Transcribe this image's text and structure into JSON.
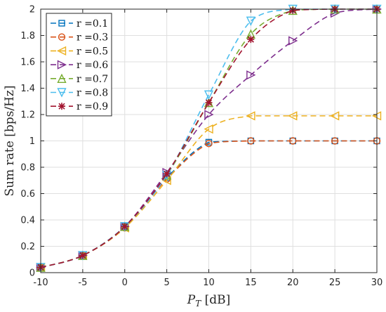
{
  "chart_data": {
    "type": "line",
    "xlabel_main": "P",
    "xlabel_sub": "T",
    "xlabel_unit": " [dB]",
    "ylabel": "Sum rate [bps/Hz]",
    "xlim": [
      -10,
      30
    ],
    "ylim": [
      0,
      2
    ],
    "xticks": [
      -10,
      -5,
      0,
      5,
      10,
      15,
      20,
      25,
      30
    ],
    "yticks": [
      0,
      0.2,
      0.4,
      0.6,
      0.8,
      1,
      1.2,
      1.4,
      1.6,
      1.8,
      2
    ],
    "grid": true,
    "legend_position": "top-left",
    "x": [
      -10,
      -5,
      0,
      5,
      10,
      15,
      20,
      25,
      30
    ],
    "series": [
      {
        "name": "r =0.1",
        "color": "#0072BD",
        "marker": "square",
        "values": [
          0.04,
          0.13,
          0.35,
          0.72,
          0.99,
          1.0,
          1.0,
          1.0,
          1.0
        ]
      },
      {
        "name": "r =0.3",
        "color": "#D95319",
        "marker": "circle",
        "values": [
          0.04,
          0.13,
          0.34,
          0.71,
          0.98,
          1.0,
          1.0,
          1.0,
          1.0
        ]
      },
      {
        "name": "r =0.5",
        "color": "#EDB120",
        "marker": "triangle-left",
        "values": [
          0.04,
          0.13,
          0.34,
          0.7,
          1.09,
          1.19,
          1.19,
          1.19,
          1.19
        ]
      },
      {
        "name": "r =0.6",
        "color": "#7E2F8E",
        "marker": "triangle-right",
        "values": [
          0.04,
          0.13,
          0.35,
          0.76,
          1.2,
          1.5,
          1.76,
          1.97,
          2.0
        ]
      },
      {
        "name": "r =0.7",
        "color": "#77AC30",
        "marker": "triangle-up",
        "values": [
          0.04,
          0.13,
          0.35,
          0.74,
          1.29,
          1.81,
          1.99,
          2.0,
          2.0
        ]
      },
      {
        "name": "r =0.8",
        "color": "#4DBEEE",
        "marker": "triangle-down",
        "values": [
          0.04,
          0.13,
          0.35,
          0.74,
          1.35,
          1.91,
          2.0,
          2.0,
          2.0
        ]
      },
      {
        "name": "r =0.9",
        "color": "#A2142F",
        "marker": "x-star",
        "values": [
          0.04,
          0.13,
          0.35,
          0.75,
          1.29,
          1.77,
          1.99,
          2.0,
          2.0
        ]
      }
    ]
  }
}
